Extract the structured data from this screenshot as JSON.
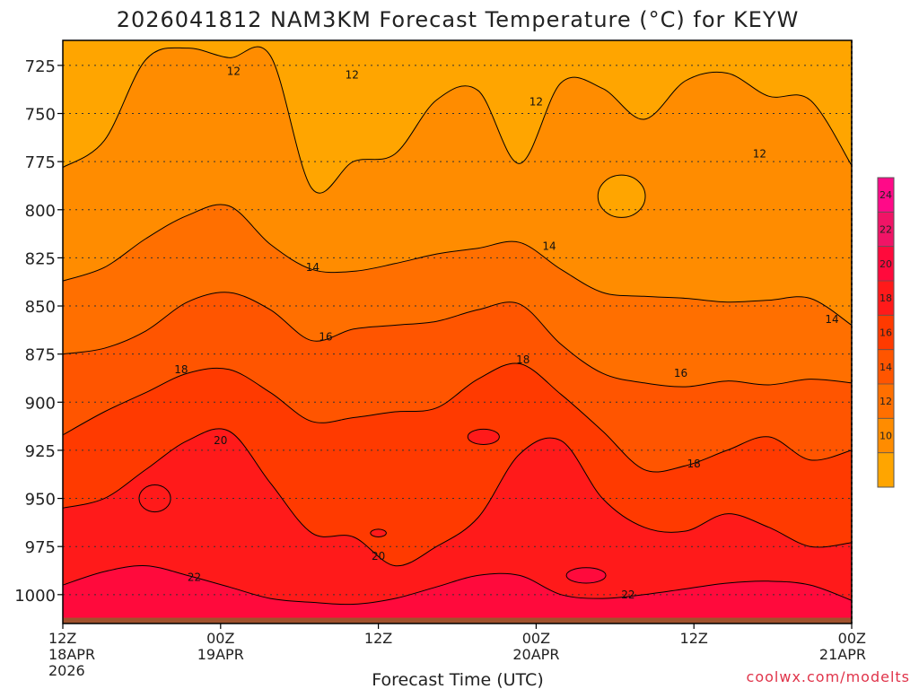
{
  "title": "2026041812 NAM3KM Forecast Temperature (°C) for KEYW",
  "credit": "coolwx.com/modelts",
  "colors": {
    "bands": [
      "#ffa500",
      "#ff8c00",
      "#ff6f00",
      "#ff5500",
      "#ff3a00",
      "#ff1a1a",
      "#ff0a3c",
      "#f01466",
      "#ff0a88"
    ],
    "ground": "#a0522d",
    "contour": "#000000",
    "credit": "#e0344a"
  },
  "chart_data": {
    "type": "heatmap",
    "title": "2026041812 NAM3KM Forecast Temperature (°C) for KEYW",
    "xlabel": "Forecast Time (UTC)",
    "ylabel": "",
    "y_axis": {
      "reversed": true,
      "ylim": [
        1015,
        712
      ],
      "ticks": [
        725,
        750,
        775,
        800,
        825,
        850,
        875,
        900,
        925,
        950,
        975,
        1000
      ]
    },
    "x_axis": {
      "xlim": [
        0,
        60
      ],
      "ticks": [
        {
          "hour": 0,
          "lines": [
            "12Z",
            "18APR",
            "2026"
          ]
        },
        {
          "hour": 12,
          "lines": [
            "00Z",
            "19APR"
          ]
        },
        {
          "hour": 24,
          "lines": [
            "12Z"
          ]
        },
        {
          "hour": 36,
          "lines": [
            "00Z",
            "20APR"
          ]
        },
        {
          "hour": 48,
          "lines": [
            "12Z"
          ]
        },
        {
          "hour": 60,
          "lines": [
            "00Z",
            "21APR"
          ]
        }
      ]
    },
    "colorbar": {
      "levels": [
        8,
        10,
        12,
        14,
        16,
        18,
        20,
        22,
        24,
        26
      ],
      "tick_labels": [
        "10",
        "12",
        "14",
        "16",
        "18",
        "20",
        "22",
        "24"
      ]
    },
    "contours": [
      {
        "level": 12,
        "pressure": [
          778,
          764,
          722,
          716,
          721,
          720,
          789,
          775,
          771,
          743,
          738,
          776,
          734,
          737,
          753,
          733,
          729,
          741,
          743,
          777
        ],
        "labels": [
          {
            "hour": 13,
            "p": 728,
            "text": "12"
          },
          {
            "hour": 22,
            "p": 730,
            "text": "12"
          },
          {
            "hour": 36,
            "p": 744,
            "text": "12"
          },
          {
            "hour": 53,
            "p": 771,
            "text": "12"
          }
        ]
      },
      {
        "level": 14,
        "pressure": [
          837,
          830,
          815,
          803,
          798,
          818,
          831,
          832,
          828,
          823,
          820,
          817,
          831,
          843,
          845,
          846,
          848,
          847,
          846,
          860
        ],
        "labels": [
          {
            "hour": 19,
            "p": 830,
            "text": "14"
          },
          {
            "hour": 37,
            "p": 819,
            "text": "14"
          },
          {
            "hour": 58.5,
            "p": 857,
            "text": "14"
          }
        ]
      },
      {
        "level": 16,
        "pressure": [
          875,
          872,
          863,
          848,
          843,
          852,
          868,
          862,
          860,
          858,
          852,
          849,
          870,
          885,
          890,
          892,
          889,
          891,
          888,
          890
        ],
        "labels": [
          {
            "hour": 20,
            "p": 866,
            "text": "16"
          },
          {
            "hour": 47,
            "p": 885,
            "text": "16"
          }
        ]
      },
      {
        "level": 18,
        "pressure": [
          917,
          905,
          895,
          885,
          883,
          895,
          910,
          908,
          905,
          903,
          888,
          880,
          896,
          915,
          935,
          933,
          925,
          918,
          930,
          925
        ],
        "labels": [
          {
            "hour": 9,
            "p": 883,
            "text": "18"
          },
          {
            "hour": 35,
            "p": 878,
            "text": "18"
          },
          {
            "hour": 48,
            "p": 932,
            "text": "18"
          }
        ]
      },
      {
        "level": 20,
        "pressure": [
          955,
          950,
          935,
          920,
          915,
          942,
          968,
          970,
          985,
          975,
          960,
          927,
          920,
          950,
          965,
          967,
          958,
          965,
          975,
          973
        ],
        "labels": [
          {
            "hour": 12,
            "p": 920,
            "text": "20"
          },
          {
            "hour": 24,
            "p": 980,
            "text": "20"
          }
        ]
      },
      {
        "level": 22,
        "pressure": [
          995,
          988,
          985,
          990,
          996,
          1002,
          1004,
          1005,
          1002,
          996,
          990,
          990,
          1000,
          1002,
          1000,
          997,
          994,
          993,
          995,
          1003
        ],
        "labels": [
          {
            "hour": 10,
            "p": 991,
            "text": "22"
          },
          {
            "hour": 43,
            "p": 1000,
            "text": "22"
          }
        ]
      }
    ],
    "closed_contours": [
      {
        "level": 12,
        "center_hour": 42.5,
        "center_p": 793,
        "rx_hours": 1.8,
        "ry_p": 11
      },
      {
        "level": 20,
        "center_hour": 7,
        "center_p": 950,
        "rx_hours": 1.2,
        "ry_p": 7
      },
      {
        "level": 20,
        "center_hour": 32,
        "center_p": 918,
        "rx_hours": 1.2,
        "ry_p": 4
      },
      {
        "level": 20,
        "center_hour": 24,
        "center_p": 968,
        "rx_hours": 0.6,
        "ry_p": 2
      },
      {
        "level": 22,
        "center_hour": 39.8,
        "center_p": 990,
        "rx_hours": 1.5,
        "ry_p": 4
      }
    ],
    "surface_pressure": 1012,
    "grid": true
  }
}
